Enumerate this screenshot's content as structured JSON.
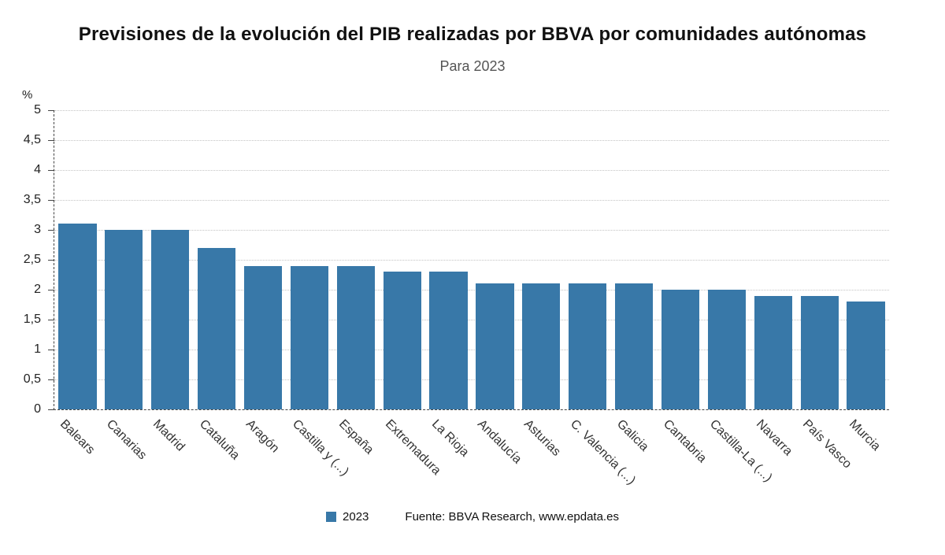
{
  "header": {
    "title": "Previsiones de la evolución del PIB realizadas por BBVA por comunidades autónomas",
    "subtitle": "Para 2023"
  },
  "axes": {
    "unit_label": "%"
  },
  "legend": {
    "label": "2023",
    "color": "#3878a8"
  },
  "source": "Fuente: BBVA Research, www.epdata.es",
  "chart_data": {
    "type": "bar",
    "title": "Previsiones de la evolución del PIB realizadas por BBVA por comunidades autónomas",
    "subtitle": "Para 2023",
    "categories": [
      "Balears",
      "Canarias",
      "Madrid",
      "Cataluña",
      "Aragón",
      "Castilla y (...)",
      "España",
      "Extremadura",
      "La Rioja",
      "Andalucía",
      "Asturias",
      "C. Valencia (...)",
      "Galicia",
      "Cantabria",
      "Castilla-La (...)",
      "Navarra",
      "País Vasco",
      "Murcia"
    ],
    "values": [
      3.1,
      3.0,
      3.0,
      2.7,
      2.4,
      2.4,
      2.4,
      2.3,
      2.3,
      2.1,
      2.1,
      2.1,
      2.1,
      2.0,
      2.0,
      1.9,
      1.9,
      1.8
    ],
    "series_name": "2023",
    "xlabel": "",
    "ylabel": "%",
    "ylim": [
      0,
      5
    ],
    "ytick_step": 0.5,
    "ytick_labels": [
      "0",
      "0,5",
      "1",
      "1,5",
      "2",
      "2,5",
      "3",
      "3,5",
      "4",
      "4,5",
      "5"
    ],
    "bar_color": "#3878a8",
    "grid": "horizontal-dotted",
    "legend_position": "bottom"
  }
}
